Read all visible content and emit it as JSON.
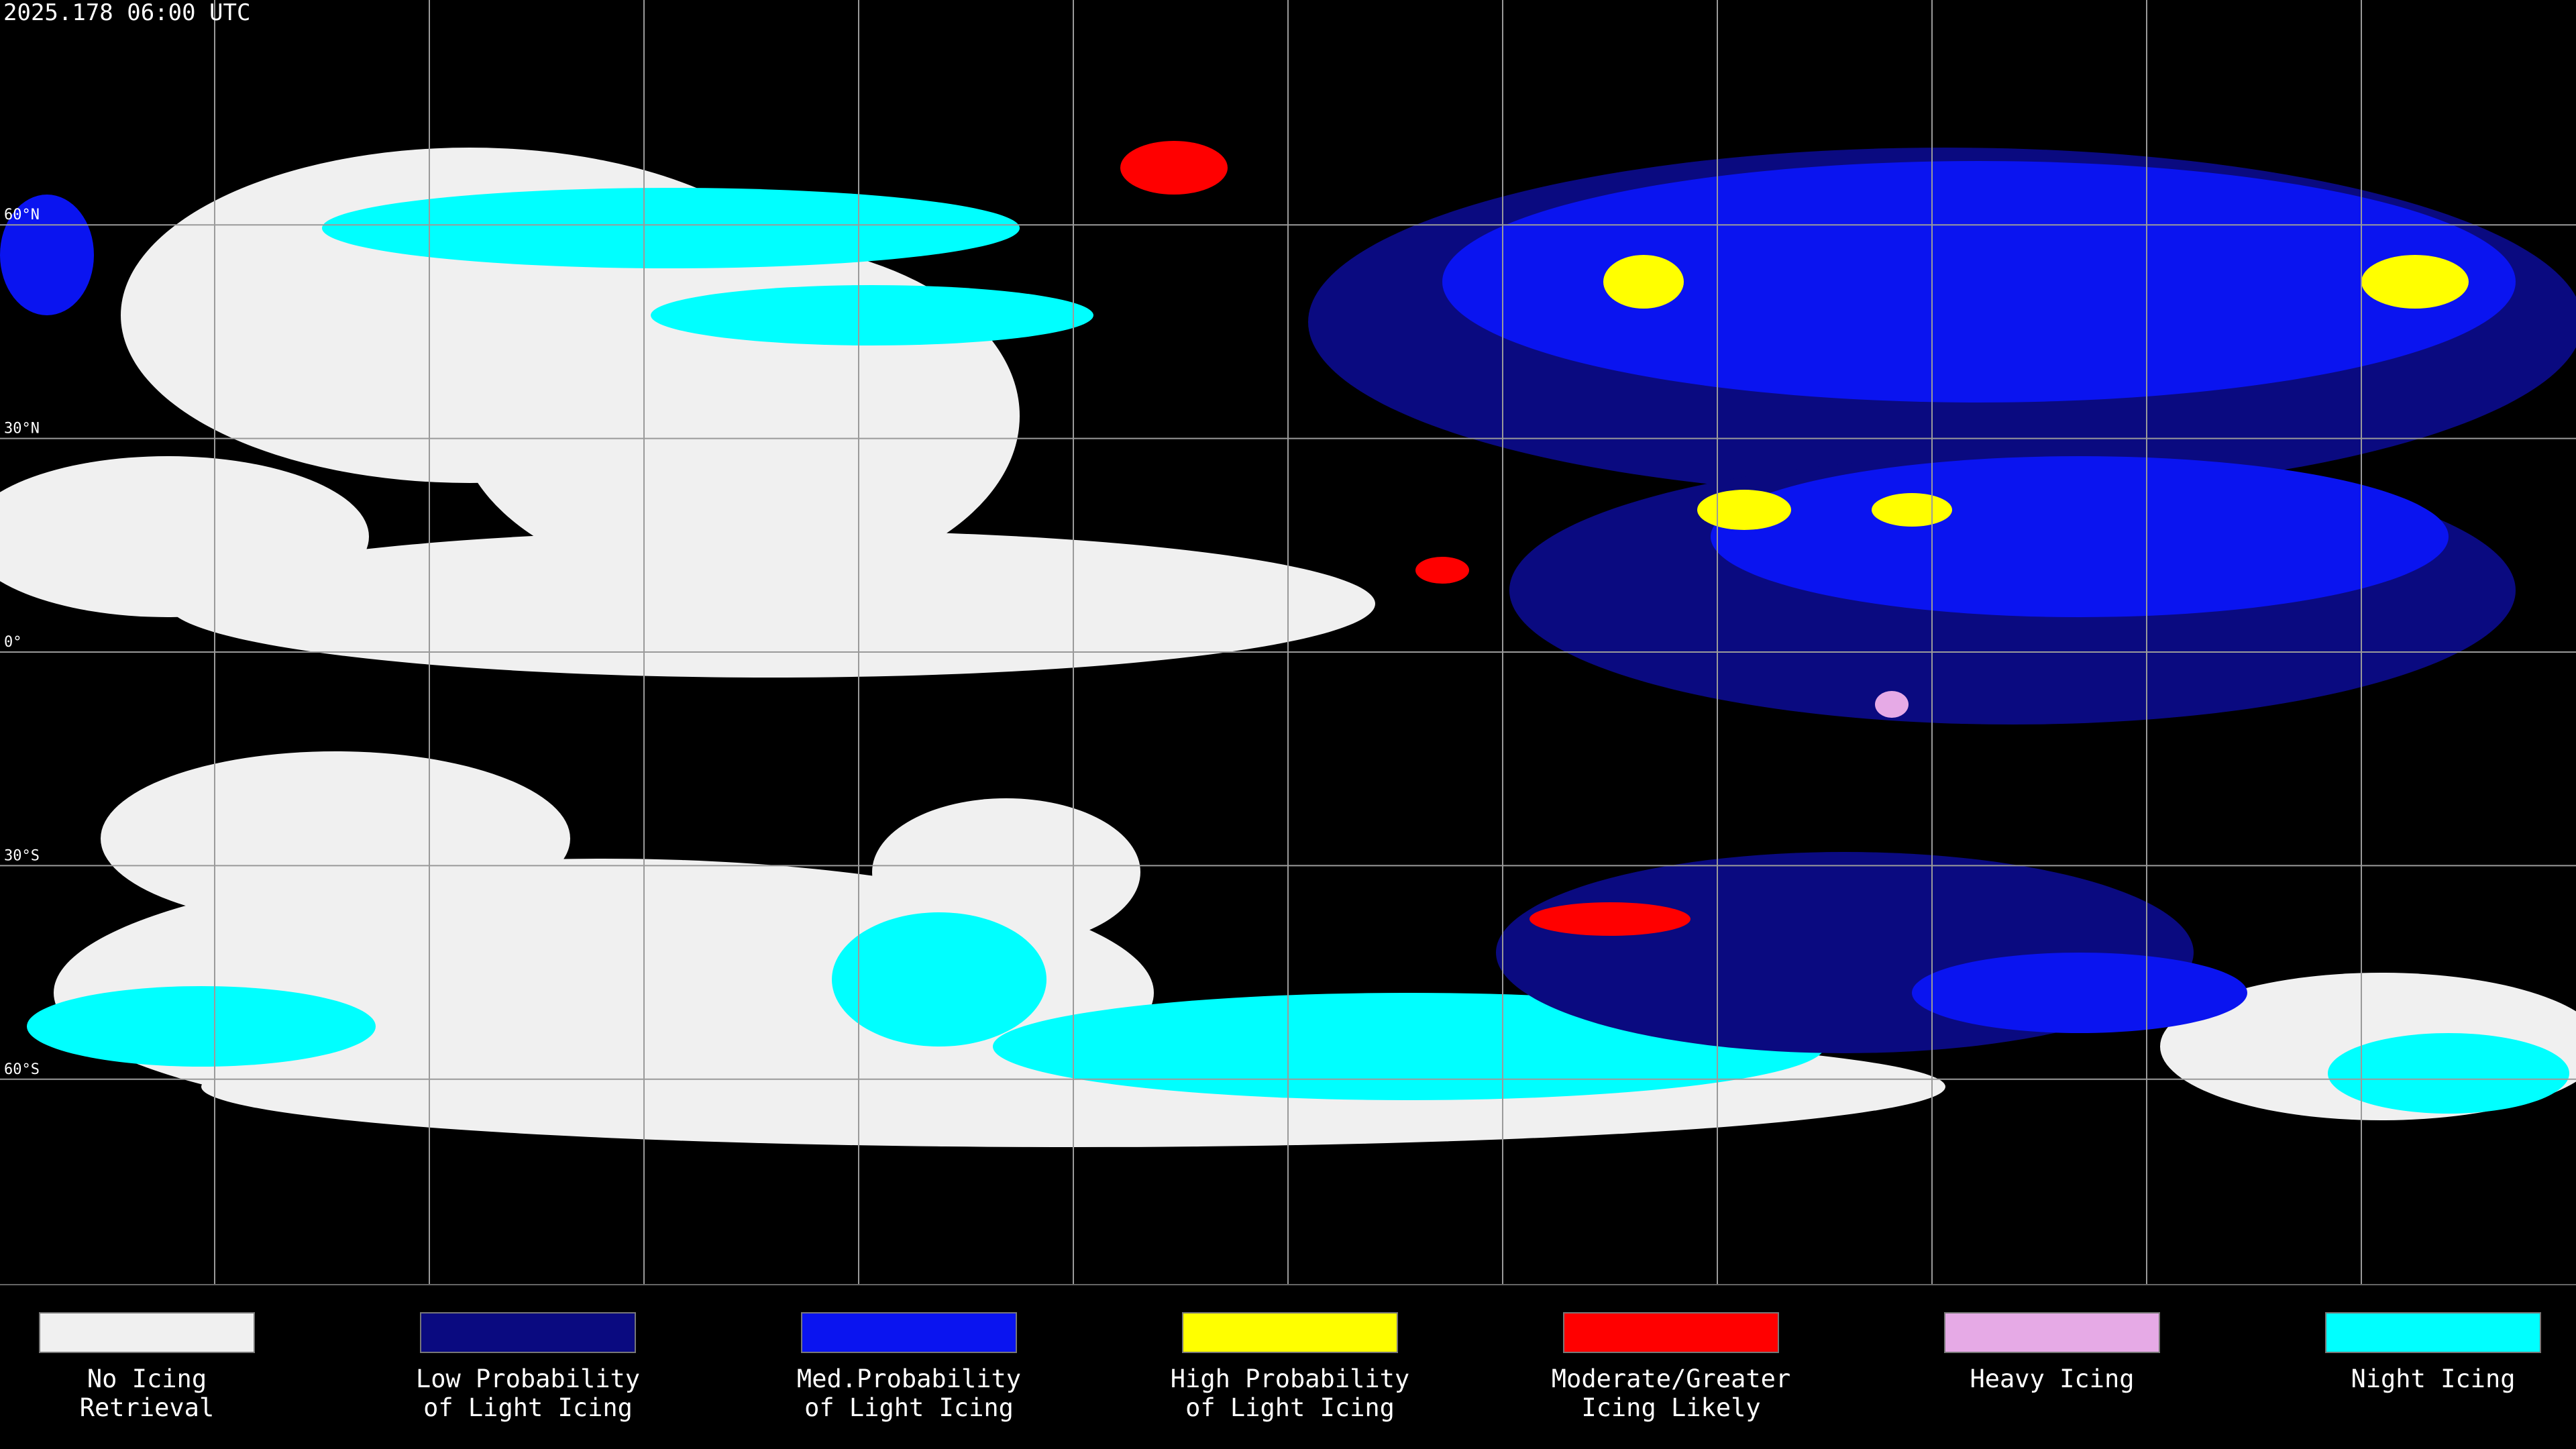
{
  "header": {
    "timestamp": "2025.178 06:00 UTC"
  },
  "map": {
    "lat_labels": [
      "60°N",
      "30°N",
      "0°",
      "30°S",
      "60°S"
    ]
  },
  "legend": {
    "items": [
      {
        "color": "#f0f0f0",
        "lines": [
          "No Icing",
          "Retrieval"
        ]
      },
      {
        "color": "#0a0a80",
        "lines": [
          "Low Probability",
          "of Light Icing"
        ]
      },
      {
        "color": "#0a14f0",
        "lines": [
          "Med.Probability",
          "of Light Icing"
        ]
      },
      {
        "color": "#ffff00",
        "lines": [
          "High Probability",
          "of Light Icing"
        ]
      },
      {
        "color": "#ff0000",
        "lines": [
          "Moderate/Greater",
          "Icing Likely"
        ]
      },
      {
        "color": "#e6aae6",
        "lines": [
          "Heavy Icing"
        ]
      },
      {
        "color": "#00ffff",
        "lines": [
          "Night Icing"
        ]
      }
    ]
  }
}
